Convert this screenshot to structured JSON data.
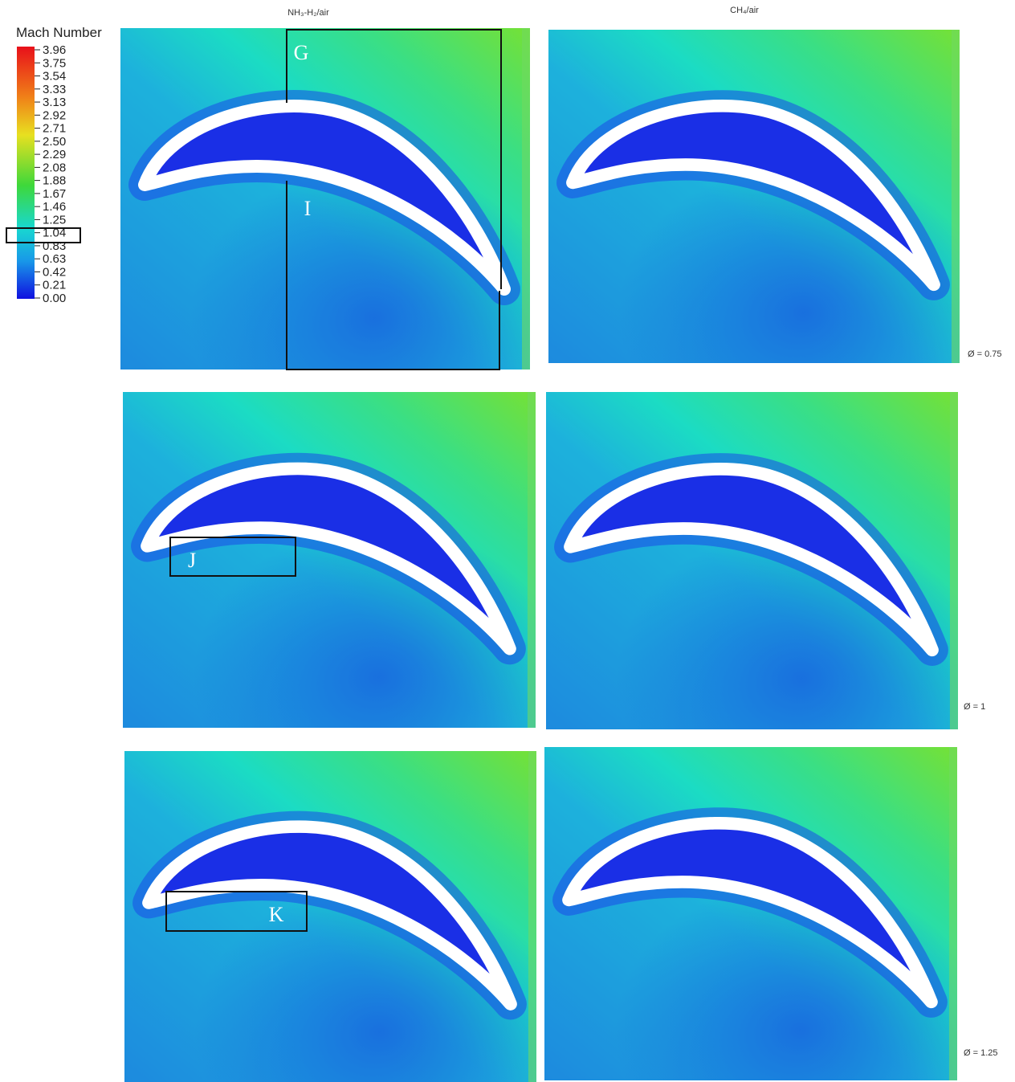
{
  "header": {
    "columns": [
      "NH₃-H₂/air",
      "CH₄/air"
    ]
  },
  "colorbar": {
    "title": "Mach Number",
    "labels": [
      "3.96",
      "3.75",
      "3.54",
      "3.33",
      "3.13",
      "2.92",
      "2.71",
      "2.50",
      "2.29",
      "2.08",
      "1.88",
      "1.67",
      "1.46",
      "1.25",
      "1.04",
      "0.83",
      "0.63",
      "0.42",
      "0.21",
      "0.00"
    ]
  },
  "rows": [
    {
      "label": "Ø = 0.75"
    },
    {
      "label": "Ø = 1"
    },
    {
      "label": "Ø = 1.25"
    }
  ],
  "annotations": [
    "G",
    "I",
    "J",
    "K"
  ]
}
